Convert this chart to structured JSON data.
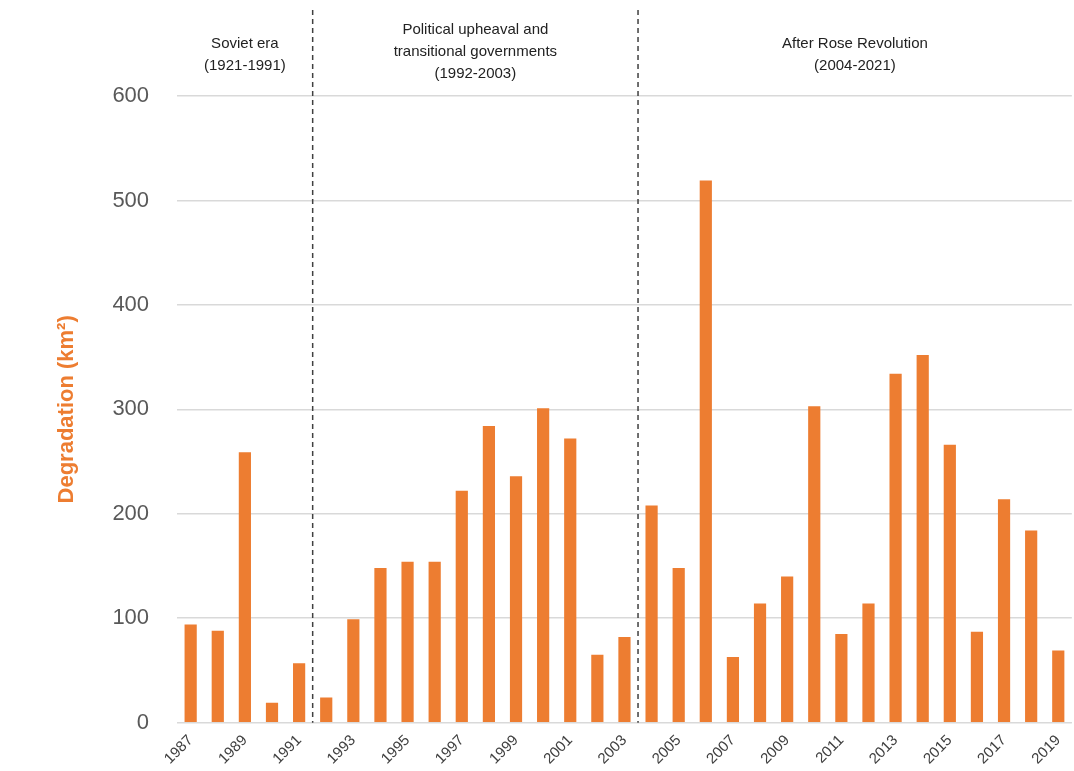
{
  "chart_data": {
    "type": "bar",
    "ylabel": "Degradation (km²)",
    "x": [
      1987,
      1988,
      1989,
      1990,
      1991,
      1992,
      1993,
      1994,
      1995,
      1996,
      1997,
      1998,
      1999,
      2000,
      2001,
      2002,
      2003,
      2004,
      2005,
      2006,
      2007,
      2008,
      2009,
      2010,
      2011,
      2012,
      2013,
      2014,
      2015,
      2016,
      2017,
      2018,
      2019
    ],
    "series": [
      {
        "color": "#ed7d31",
        "values": [
          94,
          88,
          259,
          19,
          57,
          24,
          99,
          148,
          154,
          154,
          222,
          284,
          236,
          301,
          272,
          65,
          82,
          208,
          148,
          519,
          63,
          114,
          140,
          303,
          85,
          114,
          334,
          352,
          266,
          87,
          214,
          184,
          69
        ]
      }
    ],
    "xlim": [
      1986.5,
      2019.5
    ],
    "xticks": [
      1987,
      1989,
      1991,
      1993,
      1995,
      1997,
      1999,
      2001,
      2003,
      2005,
      2007,
      2009,
      2011,
      2013,
      2015,
      2017,
      2019
    ],
    "ylim": [
      0,
      600
    ],
    "yticks": [
      0,
      100,
      200,
      300,
      400,
      500,
      600
    ],
    "grid": "y",
    "legend": false,
    "ref_lines": [
      {
        "axis": "x",
        "value": 1991.5,
        "color": "#404040",
        "line_style": "dashed"
      },
      {
        "axis": "x",
        "value": 2003.5,
        "color": "#404040",
        "line_style": "dashed"
      }
    ],
    "annotations": [
      "Soviet era\n(1921-1991)",
      "Political upheaval and\ntransitional governments\n(1992-2003)",
      "After Rose Revolution\n(2004-2021)"
    ]
  }
}
